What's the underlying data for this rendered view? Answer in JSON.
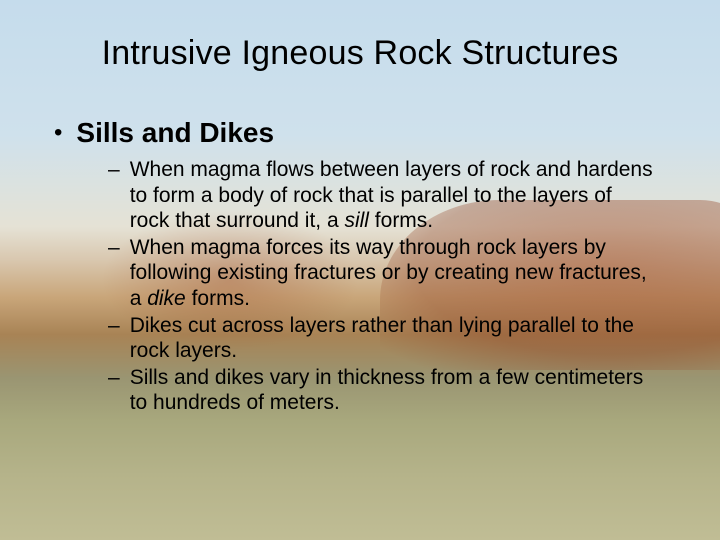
{
  "title": "Intrusive Igneous Rock Structures",
  "subheading": "Sills and Dikes",
  "items": [
    {
      "pre": "When magma flows between layers of rock and hardens to form a body of rock that is parallel to the layers of rock that surround it, a ",
      "em": "sill",
      "post": " forms."
    },
    {
      "pre": "When magma forces its way through rock layers by following existing fractures or by creating new fractures, a ",
      "em": "dike",
      "post": " forms."
    },
    {
      "pre": "Dikes cut across layers rather than lying parallel to the rock layers.",
      "em": "",
      "post": ""
    },
    {
      "pre": "Sills and dikes vary in thickness from a few centimeters to hundreds of meters.",
      "em": "",
      "post": ""
    }
  ],
  "colors": {
    "text": "#000000"
  }
}
